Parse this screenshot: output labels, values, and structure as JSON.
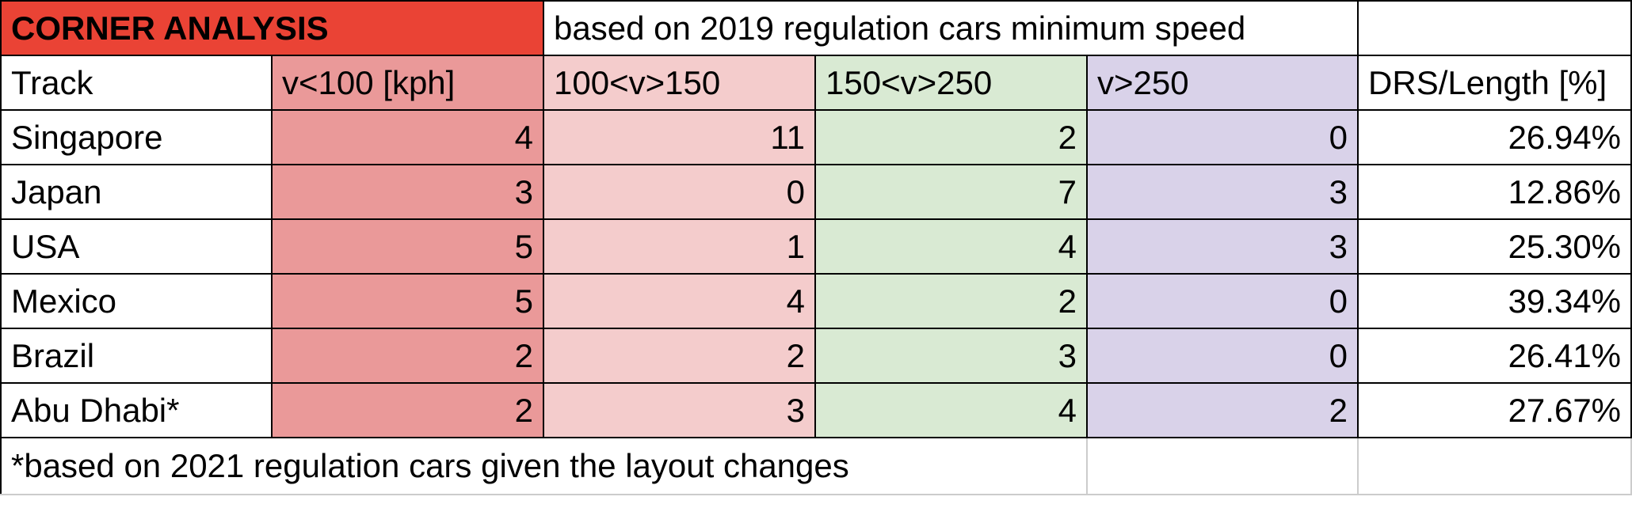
{
  "title": "CORNER ANALYSIS",
  "subtitle": "based on 2019 regulation cars minimum speed",
  "headers": [
    "Track",
    "v<100 [kph]",
    "100<v>150",
    "150<v>250",
    "v>250",
    "DRS/Length [%]"
  ],
  "rows": [
    {
      "track": "Singapore",
      "v_lt_100": "4",
      "v_100_150": "11",
      "v_150_250": "2",
      "v_gt_250": "0",
      "drs_length": "26.94%"
    },
    {
      "track": "Japan",
      "v_lt_100": "3",
      "v_100_150": "0",
      "v_150_250": "7",
      "v_gt_250": "3",
      "drs_length": "12.86%"
    },
    {
      "track": "USA",
      "v_lt_100": "5",
      "v_100_150": "1",
      "v_150_250": "4",
      "v_gt_250": "3",
      "drs_length": "25.30%"
    },
    {
      "track": "Mexico",
      "v_lt_100": "5",
      "v_100_150": "4",
      "v_150_250": "2",
      "v_gt_250": "0",
      "drs_length": "39.34%"
    },
    {
      "track": "Brazil",
      "v_lt_100": "2",
      "v_100_150": "2",
      "v_150_250": "3",
      "v_gt_250": "0",
      "drs_length": "26.41%"
    },
    {
      "track": "Abu Dhabi*",
      "v_lt_100": "2",
      "v_100_150": "3",
      "v_150_250": "4",
      "v_gt_250": "2",
      "drs_length": "27.67%"
    }
  ],
  "footnote": "*based on 2021 regulation cars given the layout changes",
  "colors": {
    "title_bg": "#ea4335",
    "col_v_lt_100": "#ea9999",
    "col_v_100_150": "#f4cccc",
    "col_v_150_250": "#d9ead3",
    "col_v_gt_250": "#d9d2e9"
  }
}
